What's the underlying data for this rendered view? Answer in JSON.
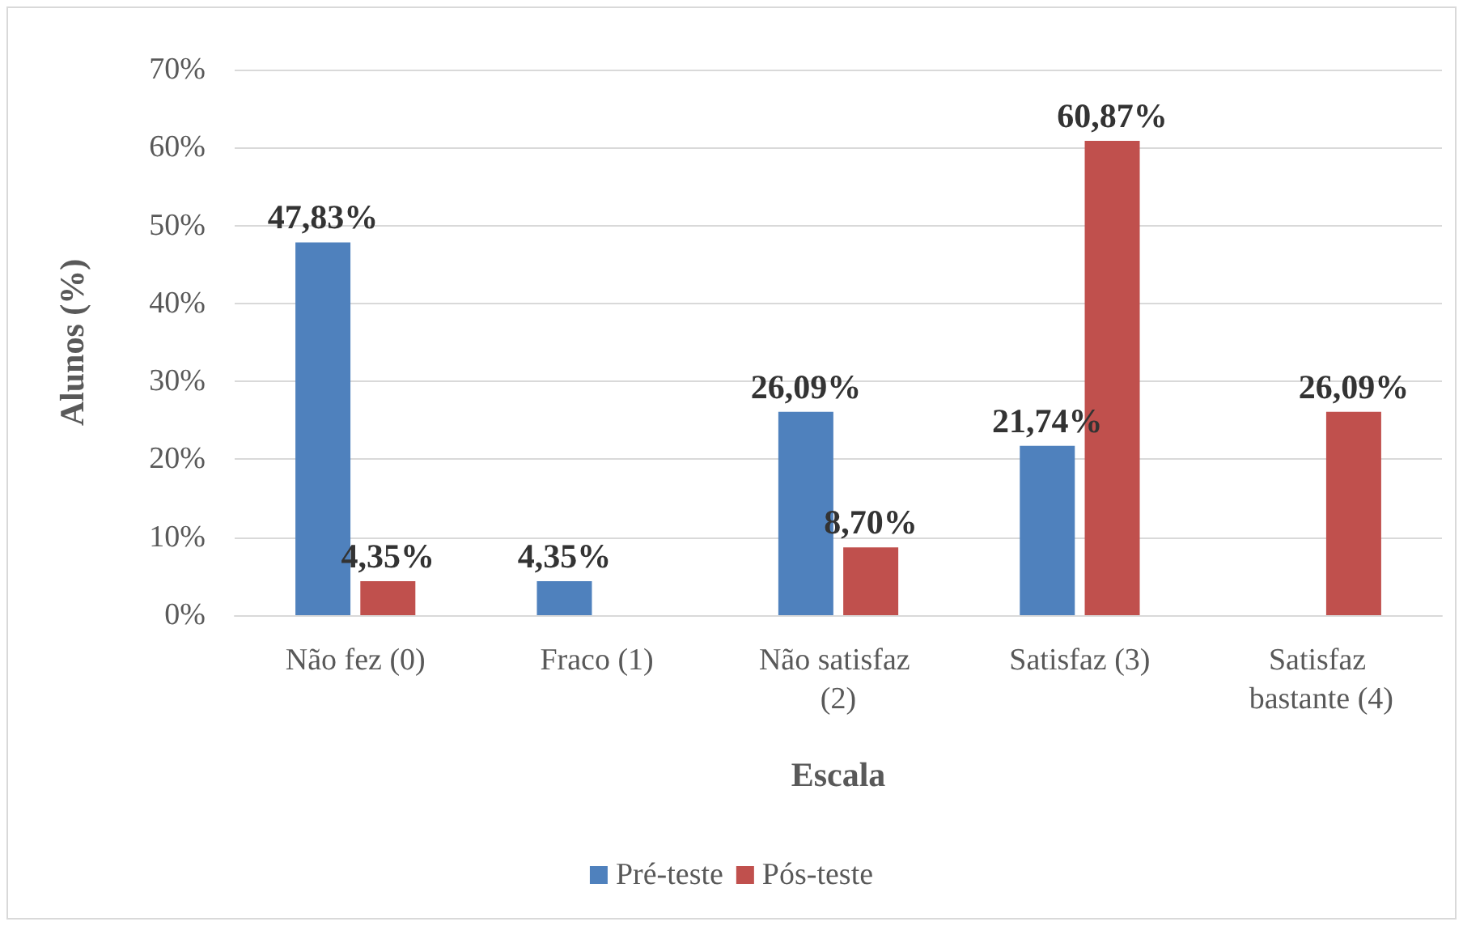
{
  "chart_data": {
    "type": "bar",
    "categories": [
      "Não fez (0)",
      "Fraco (1)",
      "Não satisfaz (2)",
      "Satisfaz (3)",
      "Satisfaz bastante (4)"
    ],
    "series": [
      {
        "name": "Pré-teste",
        "color": "#4f81bd",
        "values": [
          47.83,
          4.35,
          26.09,
          21.74,
          null
        ],
        "value_labels": [
          "47,83%",
          "4,35%",
          "26,09%",
          "21,74%",
          null
        ]
      },
      {
        "name": "Pós-teste",
        "color": "#c0504d",
        "values": [
          4.35,
          null,
          8.7,
          60.87,
          26.09
        ],
        "value_labels": [
          "4,35%",
          null,
          "8,70%",
          "60,87%",
          "26,09%"
        ]
      }
    ],
    "xlabel": "Escala",
    "ylabel": "Alunos (%)",
    "ylim": [
      0,
      70
    ],
    "yticks": [
      {
        "value": 0,
        "label": "0%"
      },
      {
        "value": 10,
        "label": "10%"
      },
      {
        "value": 20,
        "label": "20%"
      },
      {
        "value": 30,
        "label": "30%"
      },
      {
        "value": 40,
        "label": "40%"
      },
      {
        "value": 50,
        "label": "50%"
      },
      {
        "value": 60,
        "label": "60%"
      },
      {
        "value": 70,
        "label": "70%"
      }
    ],
    "grid": "y",
    "legend": "bottom"
  }
}
